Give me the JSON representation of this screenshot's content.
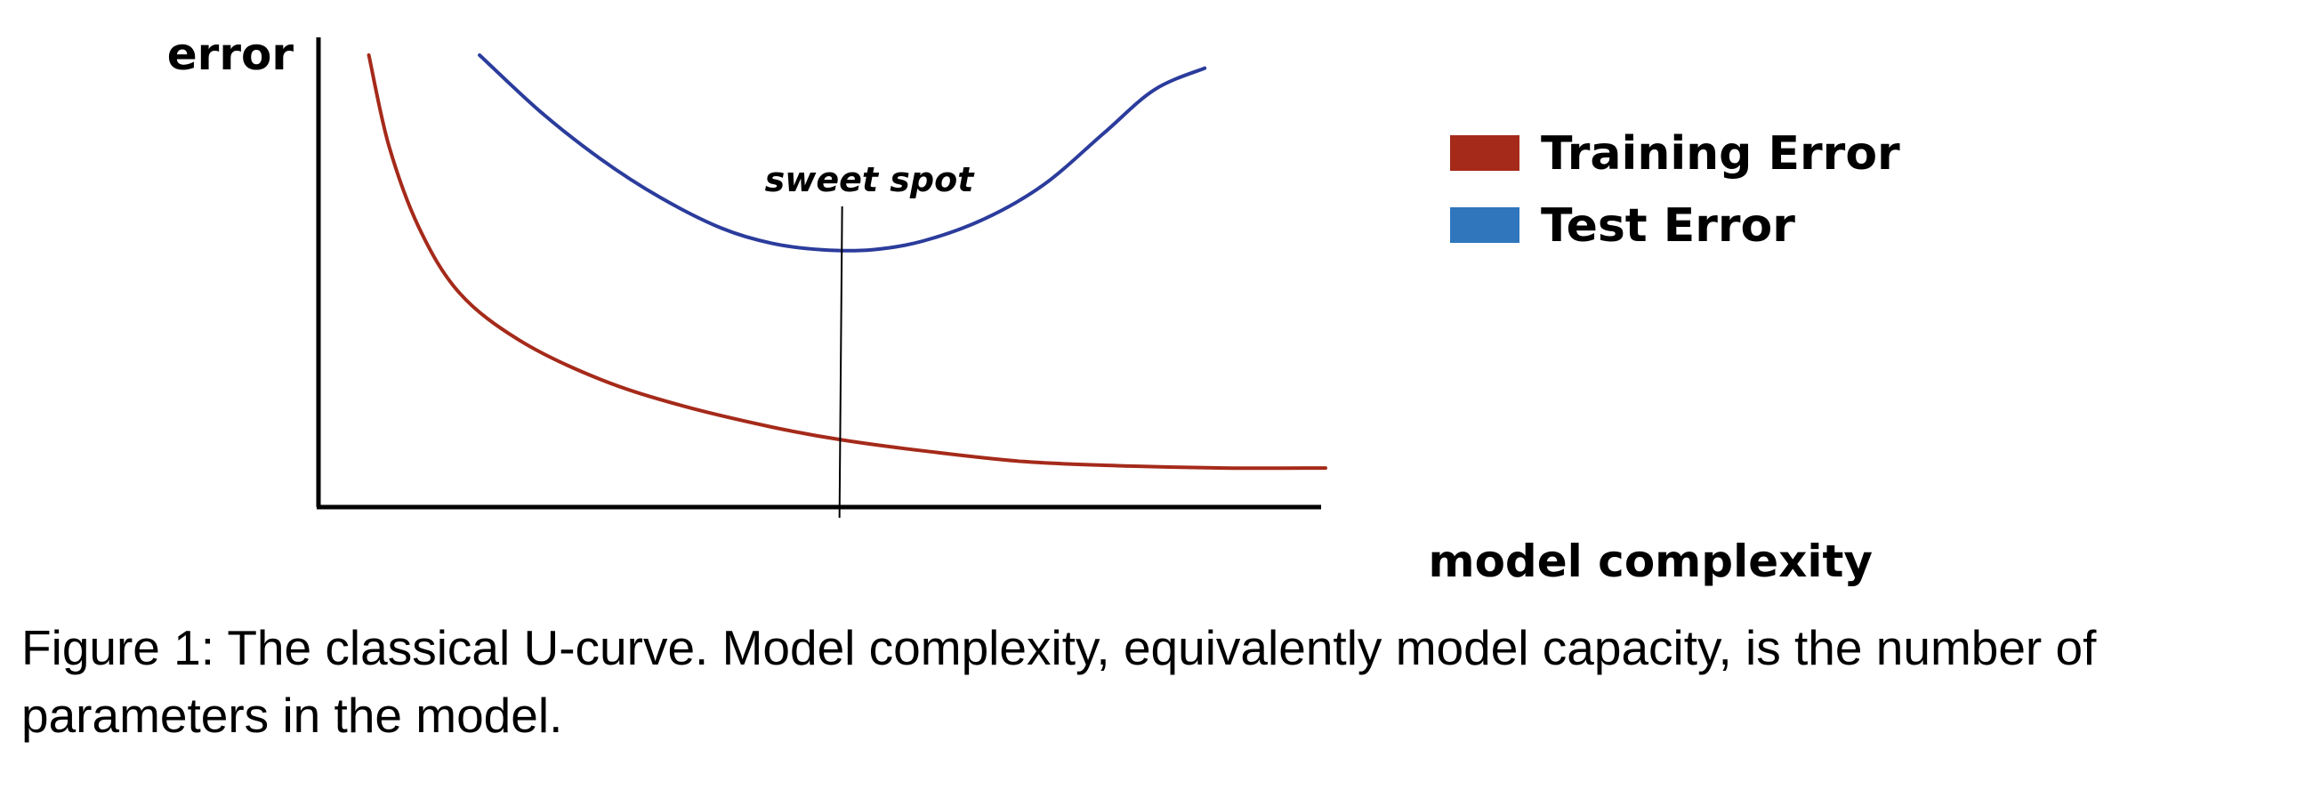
{
  "chart_data": {
    "type": "line",
    "title": "",
    "ylabel": "error",
    "xlabel": "model complexity",
    "xlim": [
      0,
      100
    ],
    "ylim": [
      0,
      100
    ],
    "grid": false,
    "legend_position": "right",
    "annotation": {
      "text": "sweet spot",
      "x": 52
    },
    "series": [
      {
        "name": "Training Error",
        "color": "#a52a1a",
        "x": [
          5,
          7,
          10,
          14,
          20,
          28,
          36,
          45,
          52,
          60,
          70,
          80,
          90,
          100
        ],
        "y": [
          100,
          79,
          60,
          45,
          34,
          25,
          19,
          14,
          11,
          8.5,
          6,
          5,
          4.5,
          4.5
        ]
      },
      {
        "name": "Test Error",
        "color": "#2b3c9c",
        "x": [
          16,
          22,
          28,
          34,
          40,
          45,
          50,
          55,
          60,
          66,
          72,
          78,
          83,
          88
        ],
        "y": [
          100,
          87,
          76,
          67,
          60,
          56.5,
          55,
          55,
          57,
          62,
          70,
          82,
          92,
          97
        ]
      }
    ],
    "legend_colors": [
      "#a52a1a",
      "#2f76bc"
    ]
  },
  "caption": "Figure 1: The classical U-curve. Model complexity, equivalently model capacity,  is the number of parameters in the model."
}
